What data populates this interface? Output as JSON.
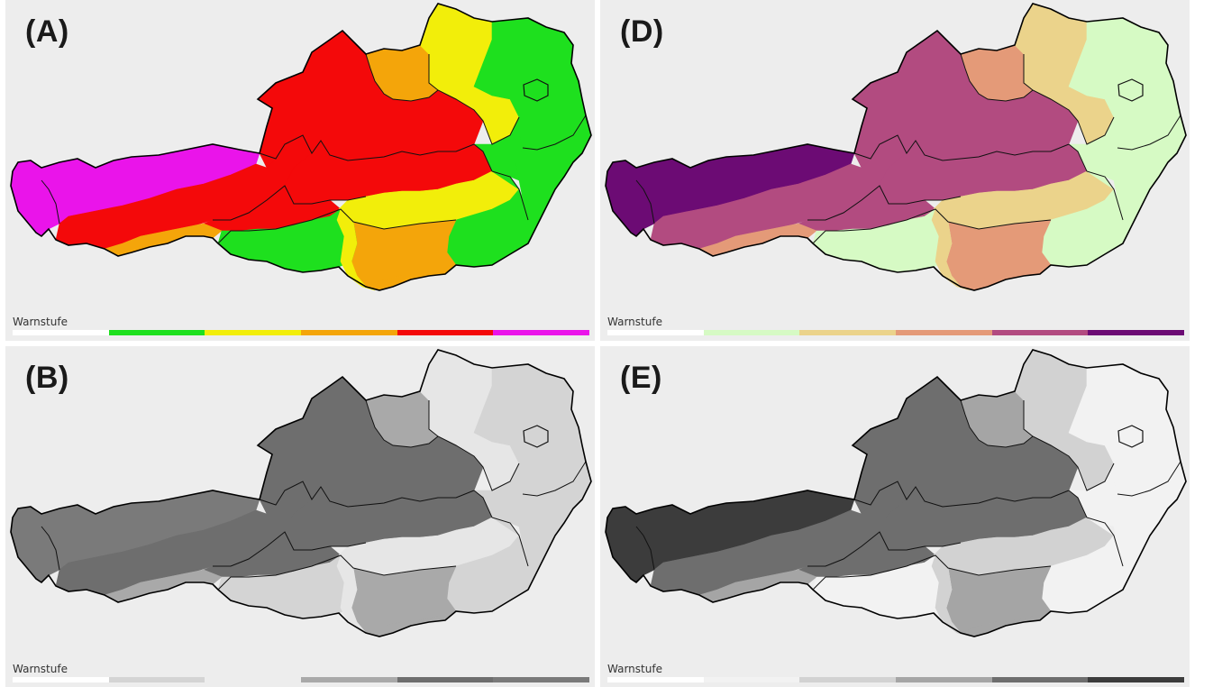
{
  "panels": {
    "a": {
      "label": "(A)",
      "legend_title": "Warnstufe",
      "colors": [
        "#ffffff",
        "#1ee01e",
        "#f2ee0a",
        "#f4a50a",
        "#f4090a",
        "#ea14ea"
      ],
      "region_fill": {
        "west": "#ea14ea",
        "inn": "#f4090a",
        "north_center": "#f4090a",
        "east_low": "#1ee01e",
        "east_mid": "#f2ee0a",
        "south_center": "#f4a50a",
        "carinthia_w": "#1ee01e",
        "carinthia_mid": "#f2ee0a",
        "carinthia_e": "#f4a50a",
        "styria_e": "#1ee01e",
        "north_w": "#f4a50a",
        "upper_center": "#f4090a",
        "stubai": "#f4090a",
        "tiro_low": "#f4a50a",
        "vienna": "#1ee01e",
        "burgenland": "#1ee01e",
        "ne": "#1ee01e",
        "nc": "#f2ee0a"
      }
    },
    "d": {
      "label": "(D)",
      "legend_title": "Warnstufe",
      "colors": [
        "#ffffff",
        "#d6fac4",
        "#ebd38b",
        "#e49a78",
        "#b24b80",
        "#6c0b74"
      ],
      "region_fill": {
        "west": "#6c0b74",
        "inn": "#b24b80",
        "north_center": "#b24b80",
        "east_low": "#d6fac4",
        "east_mid": "#ebd38b",
        "south_center": "#e49a78",
        "carinthia_w": "#d6fac4",
        "carinthia_mid": "#ebd38b",
        "carinthia_e": "#e49a78",
        "styria_e": "#d6fac4",
        "north_w": "#e49a78",
        "upper_center": "#b24b80",
        "stubai": "#b24b80",
        "tiro_low": "#e49a78",
        "vienna": "#d6fac4",
        "burgenland": "#d6fac4",
        "ne": "#d6fac4",
        "nc": "#ebd38b"
      }
    },
    "b": {
      "label": "(B)",
      "legend_title": "Warnstufe",
      "colors": [
        "#ffffff",
        "#d4d4d4",
        "#ededed",
        "#a9a9a9",
        "#6e6e6e",
        "#7a7a7a"
      ],
      "region_fill": {
        "west": "#7a7a7a",
        "inn": "#6e6e6e",
        "north_center": "#6e6e6e",
        "east_low": "#d4d4d4",
        "east_mid": "#e6e6e6",
        "south_center": "#a9a9a9",
        "carinthia_w": "#d4d4d4",
        "carinthia_mid": "#e6e6e6",
        "carinthia_e": "#a9a9a9",
        "styria_e": "#d4d4d4",
        "north_w": "#a9a9a9",
        "upper_center": "#6e6e6e",
        "stubai": "#6e6e6e",
        "tiro_low": "#a9a9a9",
        "vienna": "#d4d4d4",
        "burgenland": "#d4d4d4",
        "ne": "#d4d4d4",
        "nc": "#e6e6e6"
      }
    },
    "e": {
      "label": "(E)",
      "legend_title": "Warnstufe",
      "colors": [
        "#ffffff",
        "#f2f2f2",
        "#d2d2d2",
        "#a5a5a5",
        "#6e6e6e",
        "#3c3c3c"
      ],
      "region_fill": {
        "west": "#3c3c3c",
        "inn": "#6e6e6e",
        "north_center": "#6e6e6e",
        "east_low": "#f2f2f2",
        "east_mid": "#d2d2d2",
        "south_center": "#a5a5a5",
        "carinthia_w": "#f2f2f2",
        "carinthia_mid": "#d2d2d2",
        "carinthia_e": "#a5a5a5",
        "styria_e": "#f2f2f2",
        "north_w": "#a5a5a5",
        "upper_center": "#6e6e6e",
        "stubai": "#6e6e6e",
        "tiro_low": "#a5a5a5",
        "vienna": "#f2f2f2",
        "burgenland": "#f2f2f2",
        "ne": "#f2f2f2",
        "nc": "#d2d2d2"
      }
    }
  }
}
